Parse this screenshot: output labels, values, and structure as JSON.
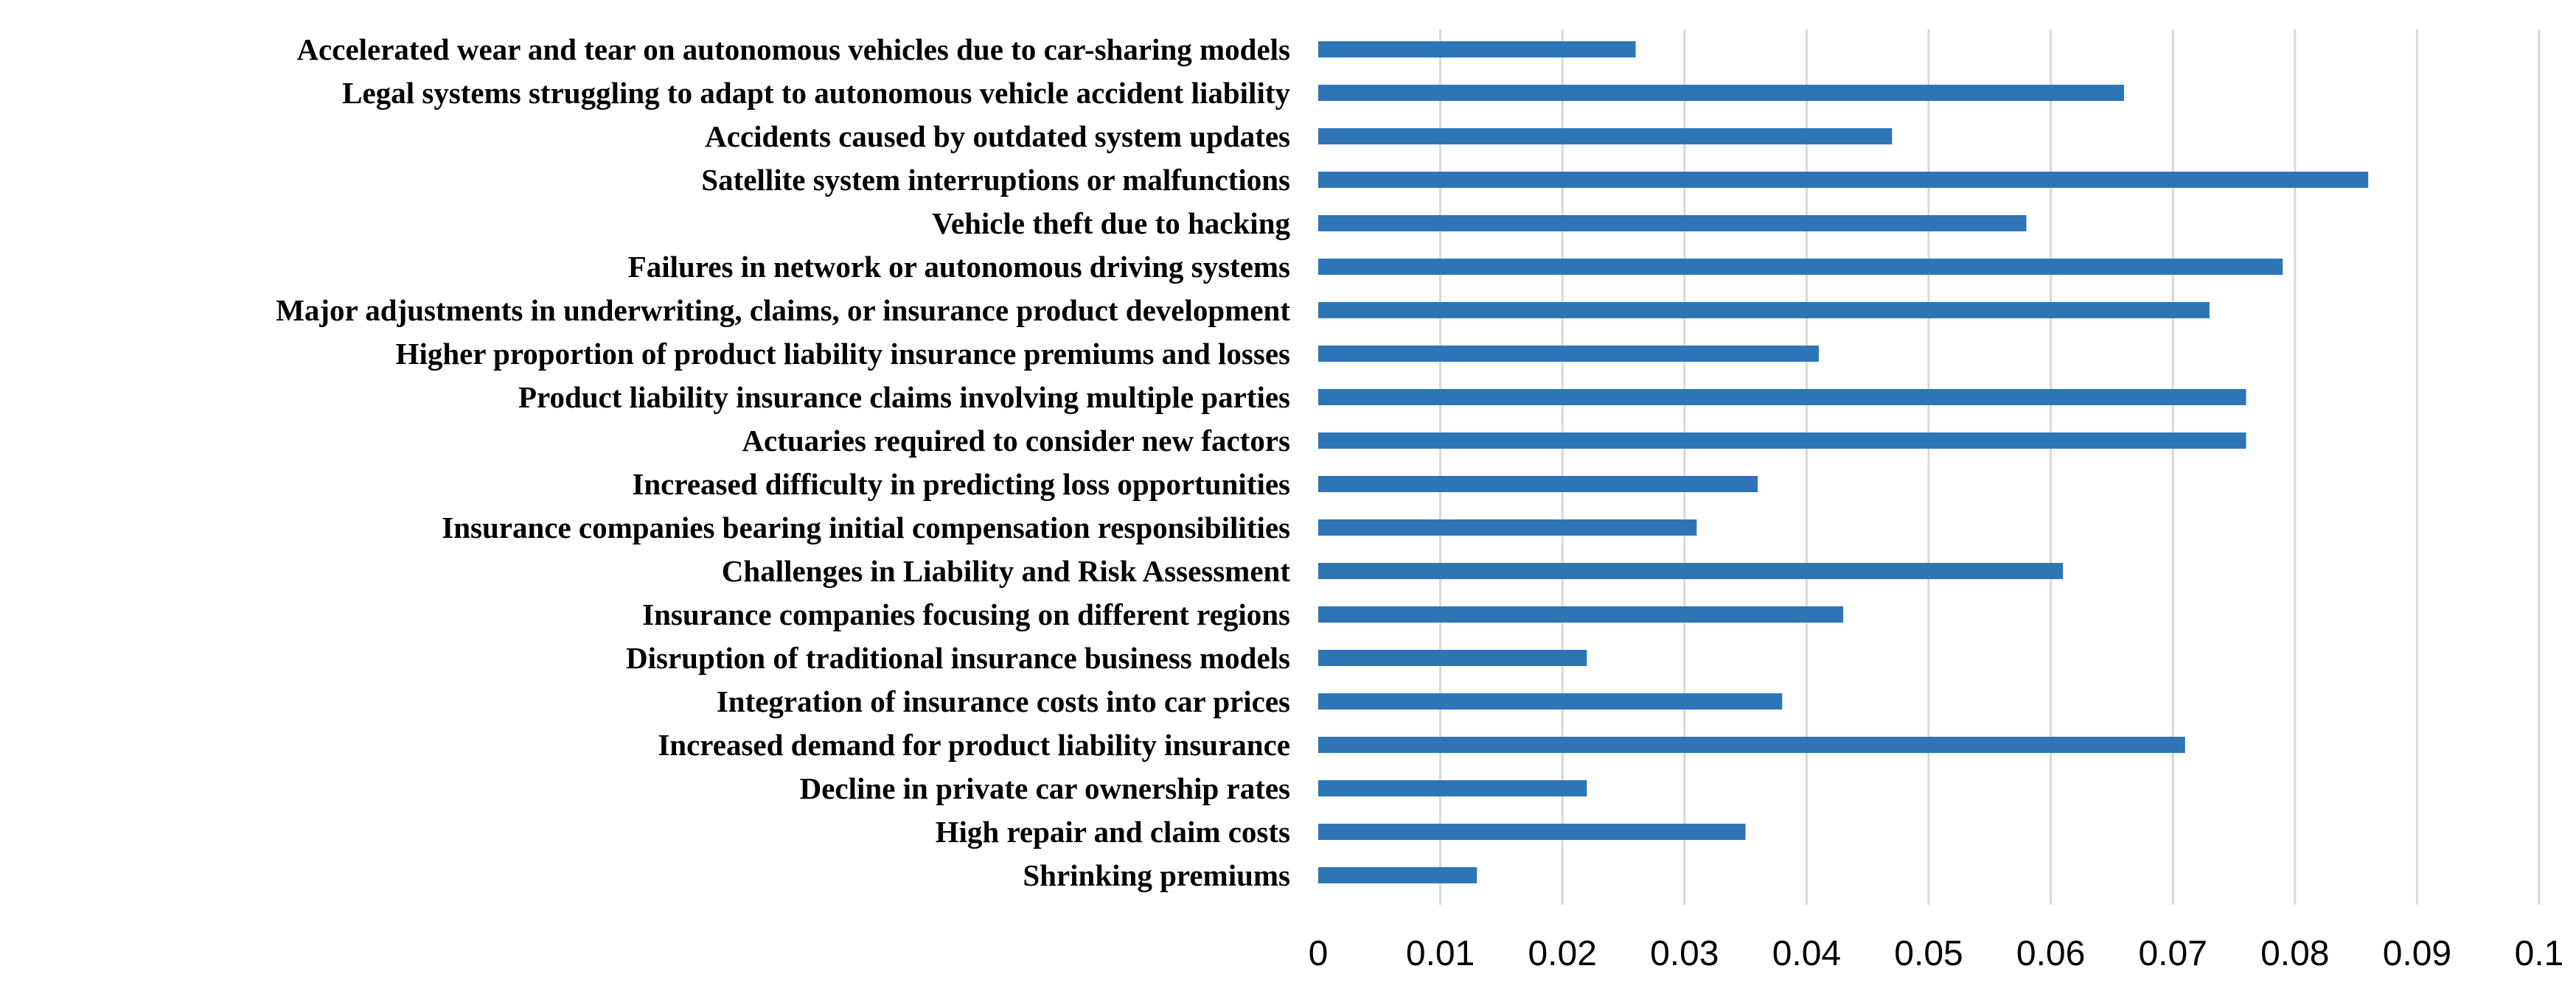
{
  "chart_data": {
    "type": "bar",
    "orientation": "horizontal",
    "title": "",
    "xlabel": "",
    "ylabel": "",
    "xlim": [
      0,
      0.1
    ],
    "grid": true,
    "legend": "none",
    "bar_color": "#2e75b6",
    "gridline_color": "#d9d9d9",
    "ticks": [
      "0",
      "0.01",
      "0.02",
      "0.03",
      "0.04",
      "0.05",
      "0.06",
      "0.07",
      "0.08",
      "0.09",
      "0.1"
    ],
    "categories": [
      "Accelerated wear and tear on autonomous vehicles due to car-sharing models",
      "Legal systems struggling to adapt to autonomous vehicle accident liability",
      "Accidents caused by outdated system updates",
      "Satellite system interruptions or malfunctions",
      "Vehicle theft due to hacking",
      "Failures in network or autonomous driving systems",
      "Major adjustments in underwriting, claims, or insurance product development",
      "Higher proportion of product liability insurance premiums and losses",
      "Product liability insurance claims involving multiple parties",
      "Actuaries required to consider new factors",
      "Increased difficulty in predicting loss opportunities",
      "Insurance companies bearing initial compensation responsibilities",
      "Challenges in Liability and Risk Assessment",
      "Insurance companies focusing on different regions",
      "Disruption of traditional insurance business models",
      "Integration of insurance costs into car prices",
      "Increased demand for product liability insurance",
      "Decline in private car ownership rates",
      "High repair and claim costs",
      "Shrinking premiums"
    ],
    "values": [
      0.026,
      0.066,
      0.047,
      0.086,
      0.058,
      0.079,
      0.073,
      0.041,
      0.076,
      0.076,
      0.036,
      0.031,
      0.061,
      0.043,
      0.022,
      0.038,
      0.071,
      0.022,
      0.035,
      0.013
    ]
  }
}
